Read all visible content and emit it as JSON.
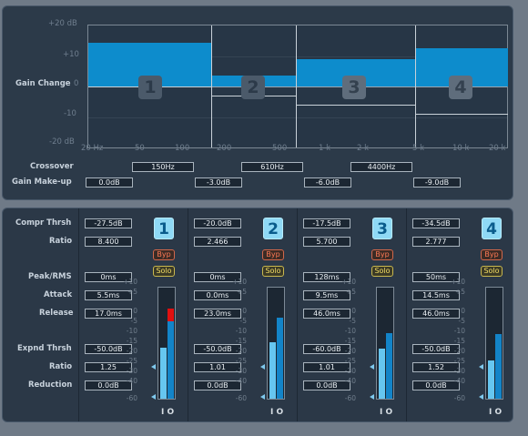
{
  "graph": {
    "y_ticks": [
      "+20 dB",
      "+10",
      "0",
      "-10",
      "-20 dB"
    ],
    "ylabel": "Gain Change",
    "x_ticks": [
      "20 Hz",
      "50",
      "100",
      "200",
      "500",
      "1 k",
      "2 k",
      "5 k",
      "10 k",
      "20 k"
    ],
    "bands": [
      "1",
      "2",
      "3",
      "4"
    ],
    "gain_change_db": [
      14,
      3.5,
      9,
      12.5
    ],
    "makeup_db": [
      0,
      -3,
      -6,
      -9
    ]
  },
  "crossover": {
    "label": "Crossover",
    "values": [
      "150Hz",
      "610Hz",
      "4400Hz"
    ]
  },
  "makeup": {
    "label": "Gain Make-up",
    "values": [
      "0.0dB",
      "-3.0dB",
      "-6.0dB",
      "-9.0dB"
    ]
  },
  "labels": {
    "compr_thrsh": "Compr Thrsh",
    "ratio": "Ratio",
    "peak_rms": "Peak/RMS",
    "attack": "Attack",
    "release": "Release",
    "expnd_thrsh": "Expnd Thrsh",
    "ratio2": "Ratio",
    "reduction": "Reduction"
  },
  "buttons": {
    "byp": "Byp",
    "solo": "Solo"
  },
  "meter_scale": [
    "+10",
    "+5",
    "0",
    "-5",
    "-10",
    "-15",
    "-20",
    "-25",
    "-30",
    "-40",
    "-60"
  ],
  "io": "I O",
  "colors": {
    "accent": "#0d8ccc",
    "meter_peak": "#e01010",
    "band_button": "#8fd9f5"
  },
  "channels": [
    {
      "num": "1",
      "compr_thrsh": "-27.5dB",
      "ratio": "8.400",
      "peak_rms": "0ms",
      "attack": "5.5ms",
      "release": "17.0ms",
      "expnd_thrsh": "-50.0dB",
      "ratio2": "1.25",
      "reduction": "0.0dB",
      "meter_in": 0.45,
      "meter_out": 0.8,
      "meter_clip": true
    },
    {
      "num": "2",
      "compr_thrsh": "-20.0dB",
      "ratio": "2.466",
      "peak_rms": "0ms",
      "attack": "0.0ms",
      "release": "23.0ms",
      "expnd_thrsh": "-50.0dB",
      "ratio2": "1.01",
      "reduction": "0.0dB",
      "meter_in": 0.5,
      "meter_out": 0.72,
      "meter_clip": false
    },
    {
      "num": "3",
      "compr_thrsh": "-17.5dB",
      "ratio": "5.700",
      "peak_rms": "128ms",
      "attack": "9.5ms",
      "release": "46.0ms",
      "expnd_thrsh": "-60.0dB",
      "ratio2": "1.01",
      "reduction": "0.0dB",
      "meter_in": 0.44,
      "meter_out": 0.58,
      "meter_clip": false
    },
    {
      "num": "4",
      "compr_thrsh": "-34.5dB",
      "ratio": "2.777",
      "peak_rms": "50ms",
      "attack": "14.5ms",
      "release": "46.0ms",
      "expnd_thrsh": "-50.0dB",
      "ratio2": "1.52",
      "reduction": "0.0dB",
      "meter_in": 0.34,
      "meter_out": 0.57,
      "meter_clip": false
    }
  ]
}
